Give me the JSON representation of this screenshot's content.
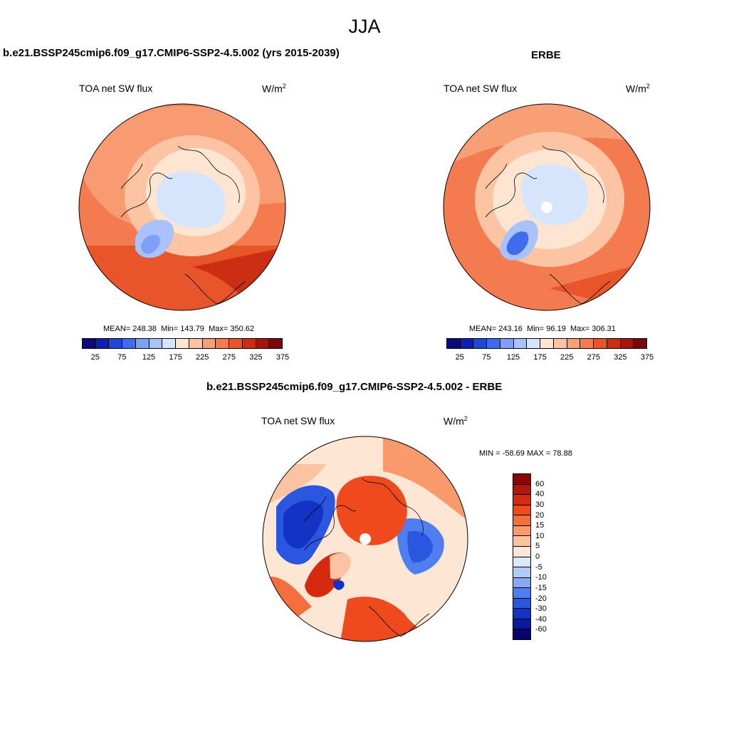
{
  "figure": {
    "title": "JJA"
  },
  "panels": [
    {
      "title": "b.e21.BSSP245cmip6.f09_g17.CMIP6-SSP2-4.5.002 (yrs 2015-2039)",
      "variable": "TOA net SW flux",
      "units_base": "W/m",
      "units_exp": "2",
      "stats": {
        "mean_label": "MEAN=",
        "mean": "248.38",
        "min_label": "Min=",
        "min": "143.79",
        "max_label": "Max=",
        "max": "350.62"
      }
    },
    {
      "title": "ERBE",
      "variable": "TOA net SW flux",
      "units_base": "W/m",
      "units_exp": "2",
      "stats": {
        "mean_label": "MEAN=",
        "mean": "243.16",
        "min_label": "Min=",
        "min": "96.19",
        "max_label": "Max=",
        "max": "306.31"
      }
    },
    {
      "title": "b.e21.BSSP245cmip6.f09_g17.CMIP6-SSP2-4.5.002 - ERBE",
      "variable": "TOA net SW flux",
      "units_base": "W/m",
      "units_exp": "2",
      "minmax": "MIN = -58.69 MAX =  78.88"
    }
  ],
  "colorbar_abs": {
    "colors": [
      "#0a0a7a",
      "#0f1fb4",
      "#1e48d6",
      "#3f6cee",
      "#7d9ff6",
      "#a9c3fa",
      "#d6e5fc",
      "#fde5d2",
      "#fcc4a2",
      "#f99f76",
      "#f47a4f",
      "#e9552b",
      "#cc2e14",
      "#a4160a",
      "#7a0808"
    ],
    "tick_labels": [
      "25",
      "75",
      "125",
      "175",
      "225",
      "275",
      "325",
      "375"
    ]
  },
  "colorbar_diff": {
    "colors": [
      "#8c0606",
      "#b3160a",
      "#d52a10",
      "#ee4a1e",
      "#f56f3e",
      "#f99a6c",
      "#fcc3a2",
      "#fde6d4",
      "#dbe8fb",
      "#b3cbf7",
      "#86a9f2",
      "#4f7fee",
      "#2a56e0",
      "#1233c4",
      "#0a1a9a",
      "#06066e"
    ],
    "tick_labels": [
      "60",
      "40",
      "30",
      "20",
      "15",
      "10",
      "5",
      "0",
      "-5",
      "-10",
      "-15",
      "-20",
      "-30",
      "-40",
      "-60"
    ]
  }
}
